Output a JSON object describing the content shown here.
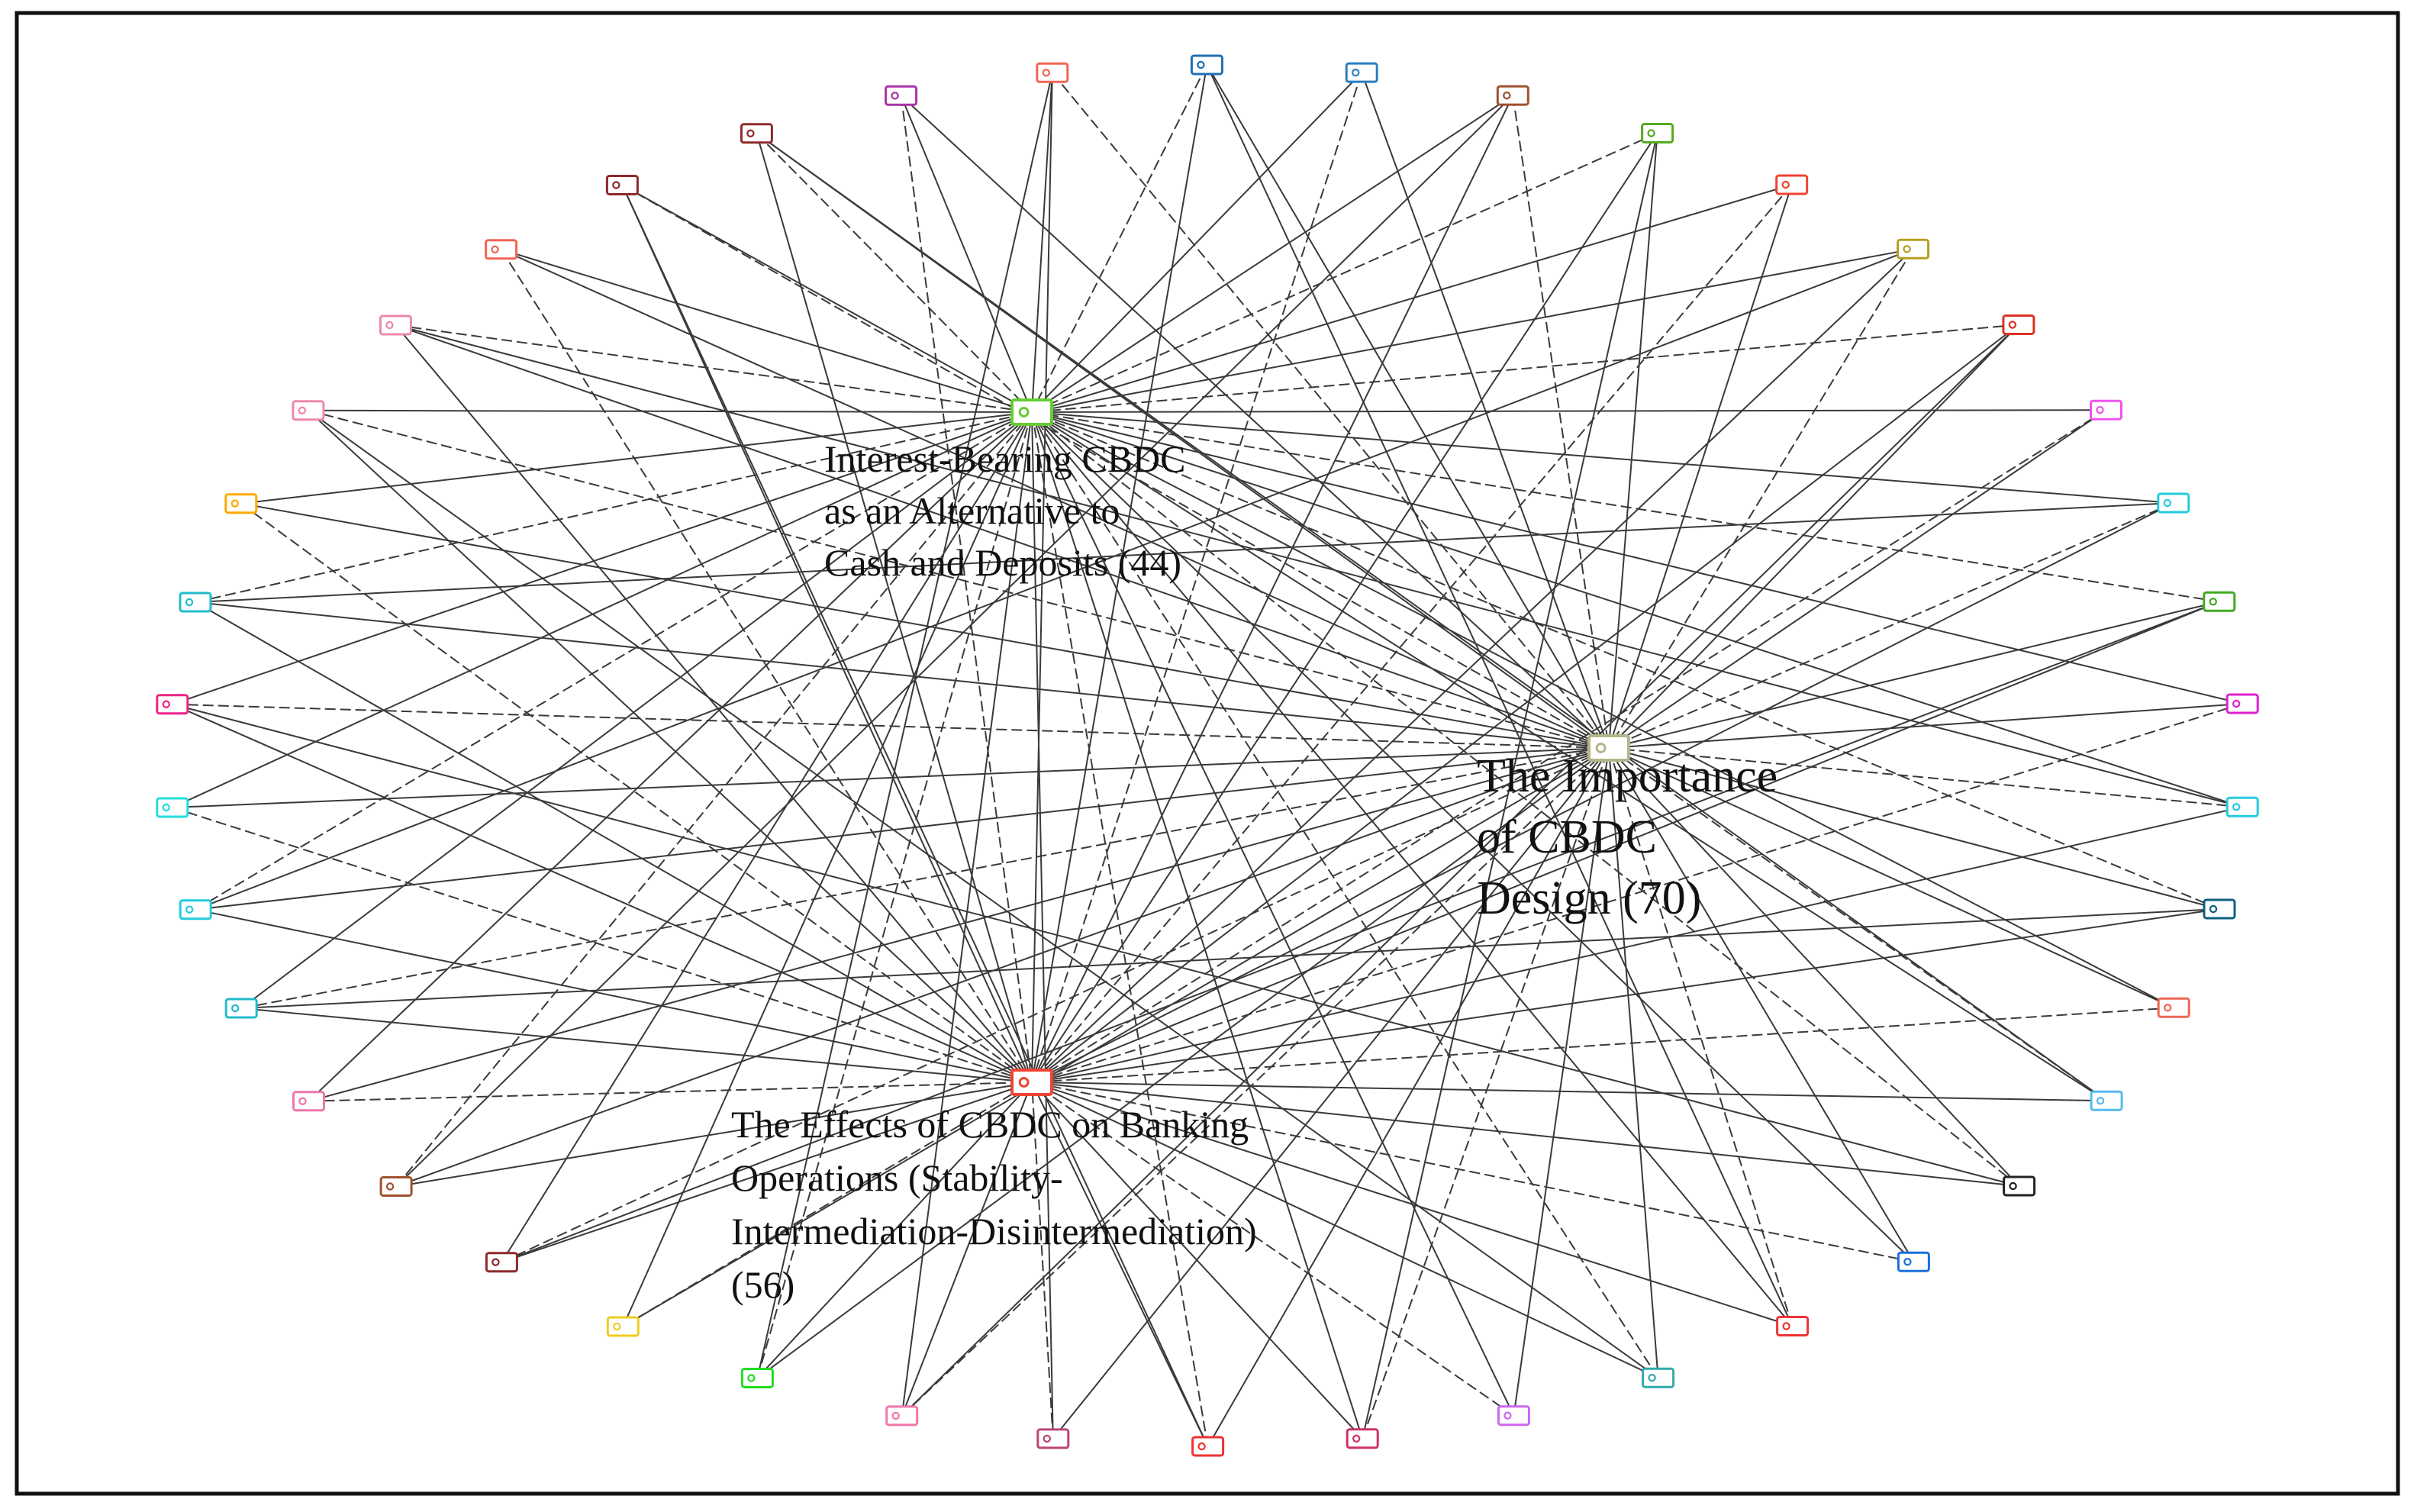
{
  "diagram": {
    "hubs": [
      {
        "id": "interest",
        "lines": [
          "Interest-Bearing CBDC",
          "as an Alternative to",
          "Cash and Deposits (44)"
        ],
        "color": "#66cc33"
      },
      {
        "id": "importance",
        "lines": [
          "The Importance",
          "of CBDC",
          "Design (70)"
        ],
        "color": "#b5b58a"
      },
      {
        "id": "effects",
        "lines": [
          "The Effects of CBDC on Banking",
          "Operations (Stability-",
          "Intermediation-Disintermediation)",
          "(56)"
        ],
        "color": "#ee4433"
      }
    ],
    "peripheral_icon": "tag-icon",
    "peripheral_colors": [
      "#8e2a2a",
      "#aa33aa",
      "#ee6655",
      "#1f6fb2",
      "#2a7fc0",
      "#a0522d",
      "#55aa22",
      "#ee4433",
      "#b5a021",
      "#dd3322",
      "#ee55ee",
      "#22ccdd",
      "#44aa22",
      "#dd22cc",
      "#22ccdd",
      "#0f5f80",
      "#ee6655",
      "#55bbee",
      "#222222",
      "#1a6fdd",
      "#ee3333",
      "#33aaaa",
      "#cc66ee",
      "#cc3366",
      "#ee3333",
      "#bb4477",
      "#ee77aa",
      "#22dd22",
      "#eecc22",
      "#8e2a2a",
      "#a0522d",
      "#ee77aa",
      "#22bbcc",
      "#22ccdd",
      "#22dddd",
      "#ee2288",
      "#22bbcc",
      "#ffaa00",
      "#ee88aa",
      "#ee88aa",
      "#ee6655",
      "#8e2a2a"
    ]
  }
}
